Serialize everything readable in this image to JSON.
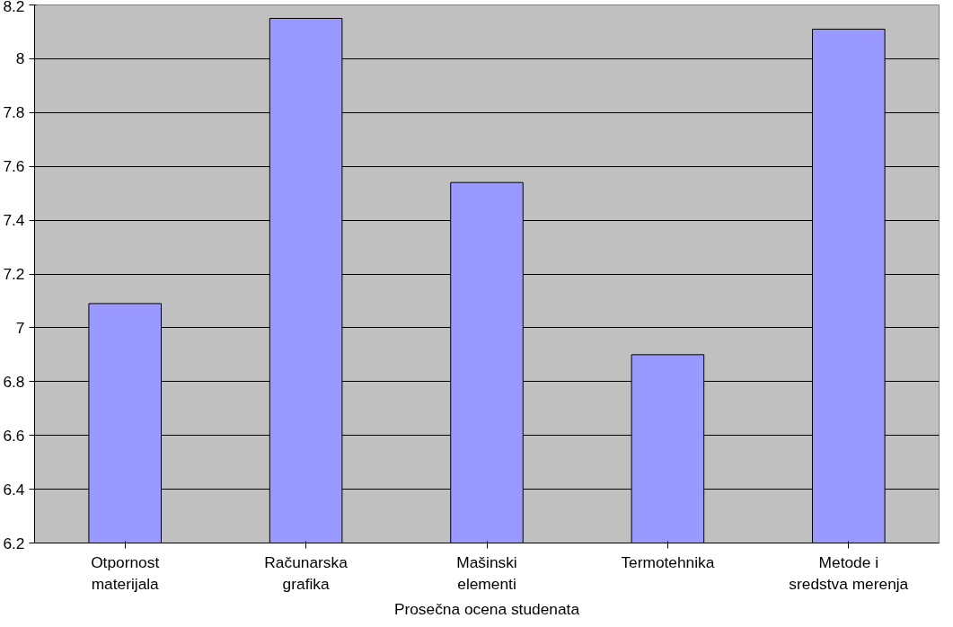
{
  "chart_data": {
    "type": "bar",
    "xlabel": "Prosečna ocena studenata",
    "categories": [
      "Otpornost materijala",
      "Računarska grafika",
      "Mašinski elementi",
      "Termotehnika",
      "Metode i sredstva merenja"
    ],
    "values": [
      7.09,
      8.15,
      7.54,
      6.9,
      8.11
    ],
    "color": "#9999ff",
    "ylim": [
      6.2,
      8.2
    ],
    "yticks": [
      6.2,
      6.4,
      6.6,
      6.8,
      7,
      7.2,
      7.4,
      7.6,
      7.8,
      8,
      8.2
    ],
    "grid": "y"
  }
}
